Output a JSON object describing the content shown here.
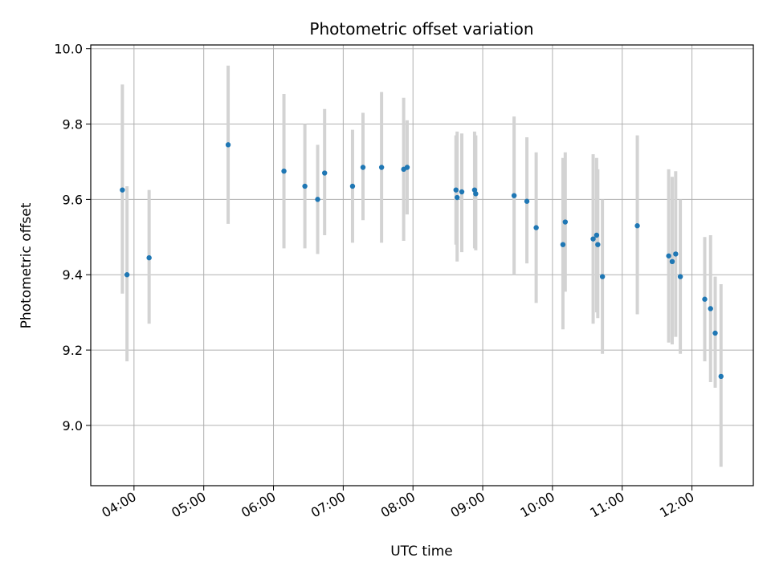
{
  "chart_data": {
    "type": "scatter",
    "title": "Photometric offset variation",
    "xlabel": "UTC time",
    "ylabel": "Photometric offset",
    "x_ticks": [
      "04:00",
      "05:00",
      "06:00",
      "07:00",
      "08:00",
      "09:00",
      "10:00",
      "11:00",
      "12:00"
    ],
    "x_tick_hours": [
      4,
      5,
      6,
      7,
      8,
      9,
      10,
      11,
      12
    ],
    "xlim_hours": [
      3.38,
      12.88
    ],
    "y_ticks": [
      "9.0",
      "9.2",
      "9.4",
      "9.6",
      "9.8",
      "10.0"
    ],
    "y_tick_values": [
      9.0,
      9.2,
      9.4,
      9.6,
      9.8,
      10.0
    ],
    "ylim": [
      8.84,
      10.01
    ],
    "grid": true,
    "point_color": "#1f77b4",
    "errorbar_color": "#d3d3d3",
    "points": [
      {
        "time": "03:50",
        "y": 9.625,
        "low": 9.35,
        "high": 9.905
      },
      {
        "time": "03:54",
        "y": 9.4,
        "low": 9.17,
        "high": 9.635
      },
      {
        "time": "04:13",
        "y": 9.445,
        "low": 9.27,
        "high": 9.625
      },
      {
        "time": "05:21",
        "y": 9.745,
        "low": 9.535,
        "high": 9.955
      },
      {
        "time": "06:09",
        "y": 9.675,
        "low": 9.47,
        "high": 9.88
      },
      {
        "time": "06:27",
        "y": 9.635,
        "low": 9.47,
        "high": 9.8
      },
      {
        "time": "06:38",
        "y": 9.6,
        "low": 9.455,
        "high": 9.745
      },
      {
        "time": "06:44",
        "y": 9.67,
        "low": 9.505,
        "high": 9.84
      },
      {
        "time": "07:08",
        "y": 9.635,
        "low": 9.485,
        "high": 9.785
      },
      {
        "time": "07:17",
        "y": 9.685,
        "low": 9.545,
        "high": 9.83
      },
      {
        "time": "07:33",
        "y": 9.685,
        "low": 9.485,
        "high": 9.885
      },
      {
        "time": "07:52",
        "y": 9.68,
        "low": 9.49,
        "high": 9.87
      },
      {
        "time": "07:55",
        "y": 9.685,
        "low": 9.56,
        "high": 9.81
      },
      {
        "time": "08:37",
        "y": 9.625,
        "low": 9.48,
        "high": 9.77
      },
      {
        "time": "08:38",
        "y": 9.605,
        "low": 9.435,
        "high": 9.78
      },
      {
        "time": "08:42",
        "y": 9.62,
        "low": 9.46,
        "high": 9.775
      },
      {
        "time": "08:53",
        "y": 9.625,
        "low": 9.47,
        "high": 9.78
      },
      {
        "time": "08:54",
        "y": 9.615,
        "low": 9.465,
        "high": 9.77
      },
      {
        "time": "09:27",
        "y": 9.61,
        "low": 9.4,
        "high": 9.82
      },
      {
        "time": "09:38",
        "y": 9.595,
        "low": 9.43,
        "high": 9.765
      },
      {
        "time": "09:46",
        "y": 9.525,
        "low": 9.325,
        "high": 9.725
      },
      {
        "time": "10:09",
        "y": 9.48,
        "low": 9.255,
        "high": 9.71
      },
      {
        "time": "10:11",
        "y": 9.54,
        "low": 9.355,
        "high": 9.725
      },
      {
        "time": "10:35",
        "y": 9.495,
        "low": 9.27,
        "high": 9.72
      },
      {
        "time": "10:38",
        "y": 9.505,
        "low": 9.3,
        "high": 9.71
      },
      {
        "time": "10:39",
        "y": 9.48,
        "low": 9.285,
        "high": 9.68
      },
      {
        "time": "10:43",
        "y": 9.395,
        "low": 9.19,
        "high": 9.6
      },
      {
        "time": "11:13",
        "y": 9.53,
        "low": 9.295,
        "high": 9.77
      },
      {
        "time": "11:40",
        "y": 9.45,
        "low": 9.22,
        "high": 9.68
      },
      {
        "time": "11:43",
        "y": 9.435,
        "low": 9.215,
        "high": 9.66
      },
      {
        "time": "11:46",
        "y": 9.455,
        "low": 9.235,
        "high": 9.675
      },
      {
        "time": "11:50",
        "y": 9.395,
        "low": 9.19,
        "high": 9.6
      },
      {
        "time": "12:11",
        "y": 9.335,
        "low": 9.17,
        "high": 9.5
      },
      {
        "time": "12:16",
        "y": 9.31,
        "low": 9.115,
        "high": 9.505
      },
      {
        "time": "12:20",
        "y": 9.245,
        "low": 9.1,
        "high": 9.395
      },
      {
        "time": "12:25",
        "y": 9.13,
        "low": 8.89,
        "high": 9.375
      }
    ]
  }
}
